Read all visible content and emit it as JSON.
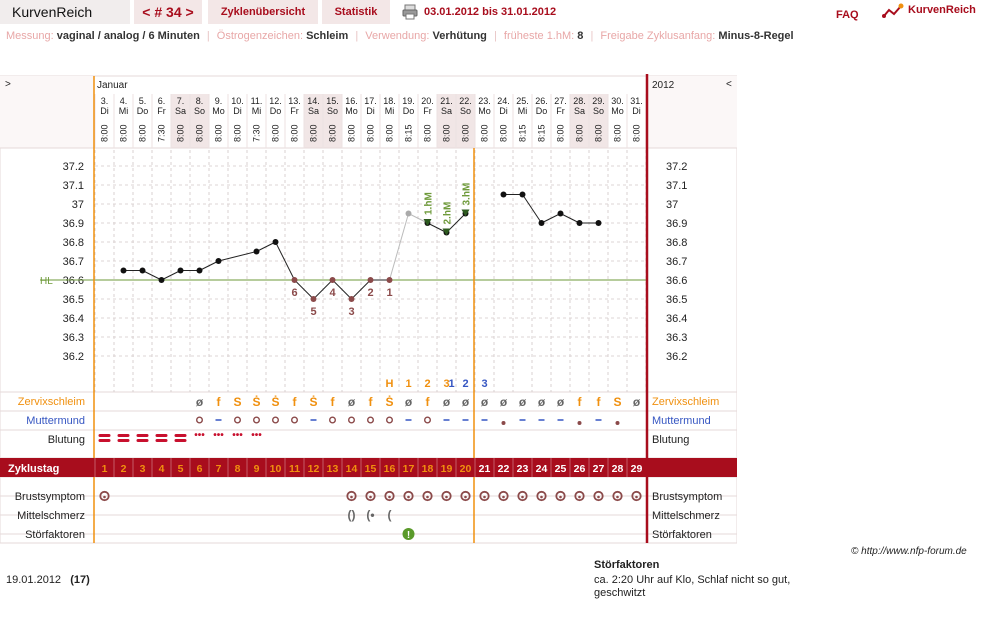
{
  "header": {
    "app_title": "KurvenReich",
    "cycle_nav": "< # 34 >",
    "tab_overview": "Zyklenübersicht",
    "tab_stats": "Statistik",
    "date_range": "03.01.2012 bis 31.01.2012",
    "faq": "FAQ",
    "brand": "KurvenReich"
  },
  "info": {
    "measure_label": "Messung:",
    "measure_value": "vaginal / analog / 6 Minuten",
    "oestro_label": "Östrogenzeichen:",
    "oestro_value": "Schleim",
    "use_label": "Verwendung:",
    "use_value": "Verhütung",
    "earliest_label": "früheste 1.hM:",
    "earliest_value": "8",
    "release_label": "Freigabe Zyklusanfang:",
    "release_value": "Minus-8-Regel"
  },
  "colors": {
    "accent": "#a80d1d",
    "orange": "#f0900f",
    "cover_line": "#6e9a3a",
    "low_temp_label": "#8b4a4a",
    "blue": "#3656c2"
  },
  "chart_data": {
    "type": "line",
    "month": "Januar",
    "year": "2012",
    "nav_left": ">",
    "nav_right": "<",
    "days": [
      {
        "date": "3.",
        "wd": "Di",
        "time": "8:00",
        "we": false
      },
      {
        "date": "4.",
        "wd": "Mi",
        "time": "8:00",
        "we": false
      },
      {
        "date": "5.",
        "wd": "Do",
        "time": "8:00",
        "we": false
      },
      {
        "date": "6.",
        "wd": "Fr",
        "time": "7:30",
        "we": false
      },
      {
        "date": "7.",
        "wd": "Sa",
        "time": "8:00",
        "we": true
      },
      {
        "date": "8.",
        "wd": "So",
        "time": "8:00",
        "we": true
      },
      {
        "date": "9.",
        "wd": "Mo",
        "time": "8:00",
        "we": false
      },
      {
        "date": "10.",
        "wd": "Di",
        "time": "8:00",
        "we": false
      },
      {
        "date": "11.",
        "wd": "Mi",
        "time": "7:30",
        "we": false
      },
      {
        "date": "12.",
        "wd": "Do",
        "time": "8:00",
        "we": false
      },
      {
        "date": "13.",
        "wd": "Fr",
        "time": "8:00",
        "we": false
      },
      {
        "date": "14.",
        "wd": "Sa",
        "time": "8:00",
        "we": true
      },
      {
        "date": "15.",
        "wd": "So",
        "time": "8:00",
        "we": true
      },
      {
        "date": "16.",
        "wd": "Mo",
        "time": "8:00",
        "we": false
      },
      {
        "date": "17.",
        "wd": "Di",
        "time": "8:00",
        "we": false
      },
      {
        "date": "18.",
        "wd": "Mi",
        "time": "8:00",
        "we": false
      },
      {
        "date": "19.",
        "wd": "Do",
        "time": "8:15",
        "we": false
      },
      {
        "date": "20.",
        "wd": "Fr",
        "time": "8:00",
        "we": false
      },
      {
        "date": "21.",
        "wd": "Sa",
        "time": "8:00",
        "we": true
      },
      {
        "date": "22.",
        "wd": "So",
        "time": "8:00",
        "we": true
      },
      {
        "date": "23.",
        "wd": "Mo",
        "time": "8:00",
        "we": false
      },
      {
        "date": "24.",
        "wd": "Di",
        "time": "8:00",
        "we": false
      },
      {
        "date": "25.",
        "wd": "Mi",
        "time": "8:15",
        "we": false
      },
      {
        "date": "26.",
        "wd": "Do",
        "time": "8:15",
        "we": false
      },
      {
        "date": "27.",
        "wd": "Fr",
        "time": "8:00",
        "we": false
      },
      {
        "date": "28.",
        "wd": "Sa",
        "time": "8:00",
        "we": true
      },
      {
        "date": "29.",
        "wd": "So",
        "time": "8:00",
        "we": true
      },
      {
        "date": "30.",
        "wd": "Mo",
        "time": "8:00",
        "we": false
      },
      {
        "date": "31.",
        "wd": "Di",
        "time": "8:00",
        "we": false
      }
    ],
    "y_ticks": [
      "37.2",
      "37.1",
      "37",
      "36.9",
      "36.8",
      "36.7",
      "36.6",
      "36.5",
      "36.4",
      "36.3",
      "36.2"
    ],
    "ylim": [
      36.1,
      37.3
    ],
    "cover_line": 36.6,
    "cover_label": "HL",
    "temps": [
      null,
      36.65,
      36.65,
      36.6,
      36.65,
      36.65,
      36.7,
      null,
      36.75,
      36.8,
      36.6,
      36.5,
      36.6,
      36.5,
      36.6,
      36.6,
      36.95,
      36.9,
      36.85,
      36.95,
      null,
      37.05,
      37.05,
      36.9,
      36.95,
      36.9,
      36.9,
      null,
      null
    ],
    "excluded_days": [
      16
    ],
    "low_labels": [
      {
        "day": 10,
        "text": "6",
        "pos": "below"
      },
      {
        "day": 11,
        "text": "5",
        "pos": "below"
      },
      {
        "day": 12,
        "text": "4",
        "pos": "below"
      },
      {
        "day": 13,
        "text": "3",
        "pos": "below"
      },
      {
        "day": 14,
        "text": "2",
        "pos": "below"
      },
      {
        "day": 15,
        "text": "1",
        "pos": "below"
      }
    ],
    "high_labels": [
      {
        "day": 17,
        "text": "1.hM"
      },
      {
        "day": 18,
        "text": "2.hM"
      },
      {
        "day": 19,
        "text": "3.hM"
      }
    ],
    "evaluation_day": 19,
    "mucus_peak_labels": [
      {
        "day": 15,
        "text": "H",
        "color": "#f0900f"
      },
      {
        "day": 16,
        "text": "1",
        "color": "#f0900f"
      },
      {
        "day": 17,
        "text": "2",
        "color": "#f0900f"
      },
      {
        "day": 18,
        "text": "3",
        "color": "#f0900f"
      },
      {
        "day": 18,
        "text": "1",
        "color": "#3656c2",
        "offset": 1
      },
      {
        "day": 19,
        "text": "2",
        "color": "#3656c2"
      },
      {
        "day": 20,
        "text": "3",
        "color": "#3656c2"
      }
    ],
    "rows": {
      "mucus_label": "Zervixschleim",
      "cervix_label": "Muttermund",
      "bleeding_label": "Blutung",
      "cycleday_label": "Zyklustag",
      "breast_label": "Brustsymptom",
      "midpain_label": "Mittelschmerz",
      "disturb_label": "Störfaktoren"
    },
    "mucus": [
      "",
      "",
      "",
      "",
      "",
      "ø",
      "f",
      "S",
      "Ṡ",
      "Ṡ",
      "f",
      "Ṡ",
      "f",
      "ø",
      "f",
      "Ṡ",
      "ø",
      "f",
      "ø",
      "ø",
      "ø",
      "ø",
      "ø",
      "ø",
      "ø",
      "f",
      "f",
      "S",
      "ø"
    ],
    "cervix": [
      "",
      "",
      "",
      "",
      "",
      "o",
      "-",
      "o",
      "o",
      "o",
      "o",
      "-",
      "o",
      "o",
      "o",
      "o",
      "-",
      "o",
      "-",
      "-",
      "-",
      "•",
      "-",
      "-",
      "-",
      "•",
      "-",
      "•",
      ""
    ],
    "bleeding": [
      "heavy",
      "heavy",
      "heavy",
      "heavy",
      "heavy",
      "light",
      "light",
      "light",
      "light",
      "",
      "",
      "",
      "",
      "",
      "",
      "",
      "",
      "",
      "",
      "",
      "",
      "",
      "",
      "",
      "",
      "",
      "",
      "",
      ""
    ],
    "cycle_days": [
      "1",
      "2",
      "3",
      "4",
      "5",
      "6",
      "7",
      "8",
      "9",
      "10",
      "11",
      "12",
      "13",
      "14",
      "15",
      "16",
      "17",
      "18",
      "19",
      "20",
      "21",
      "22",
      "23",
      "24",
      "25",
      "26",
      "27",
      "28",
      "29"
    ],
    "breast": [
      true,
      false,
      false,
      false,
      false,
      false,
      false,
      false,
      false,
      false,
      false,
      false,
      false,
      true,
      true,
      true,
      true,
      true,
      true,
      true,
      true,
      true,
      true,
      true,
      true,
      true,
      true,
      true,
      true
    ],
    "midpain": [
      "",
      "",
      "",
      "",
      "",
      "",
      "",
      "",
      "",
      "",
      "",
      "",
      "",
      "()",
      "(•",
      "(",
      "",
      "",
      "",
      "",
      "",
      "",
      "",
      "",
      "",
      "",
      "",
      "",
      ""
    ],
    "disturb_day": 16,
    "copyright": "© http://www.nfp-forum.de"
  },
  "footer": {
    "date": "19.01.2012",
    "cycle_count": "(17)",
    "stor_title": "Störfaktoren",
    "stor_text": "ca. 2:20 Uhr auf Klo, Schlaf nicht so gut, geschwitzt"
  }
}
